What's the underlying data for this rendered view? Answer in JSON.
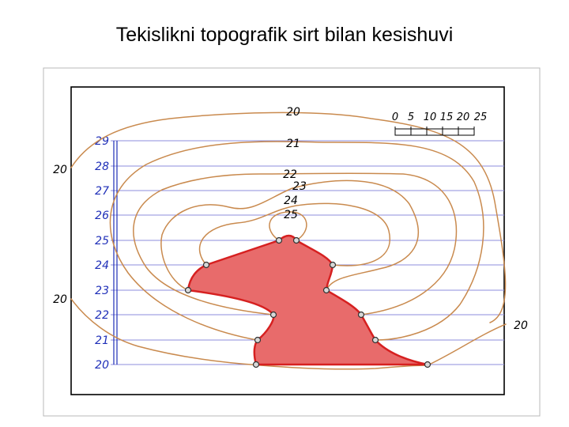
{
  "title": "Tekislikni topografik sirt bilan kesishuvi",
  "colors": {
    "contour": "#c98a4e",
    "level_line": "#8c8cdc",
    "section_fill": "#e86b6b",
    "section_stroke": "#d62020",
    "level_number": "#1f2fb8"
  },
  "levels": [
    "29",
    "28",
    "27",
    "26",
    "25",
    "24",
    "23",
    "22",
    "21",
    "20"
  ],
  "scale_labels": [
    "0",
    "5",
    "10",
    "15",
    "20",
    "25"
  ],
  "contour_labels": {
    "left_top": "20",
    "left_mid": "20",
    "right": "20",
    "top": "20",
    "c21": "21",
    "c22": "22",
    "c23": "23",
    "c24": "24",
    "c25": "25"
  }
}
